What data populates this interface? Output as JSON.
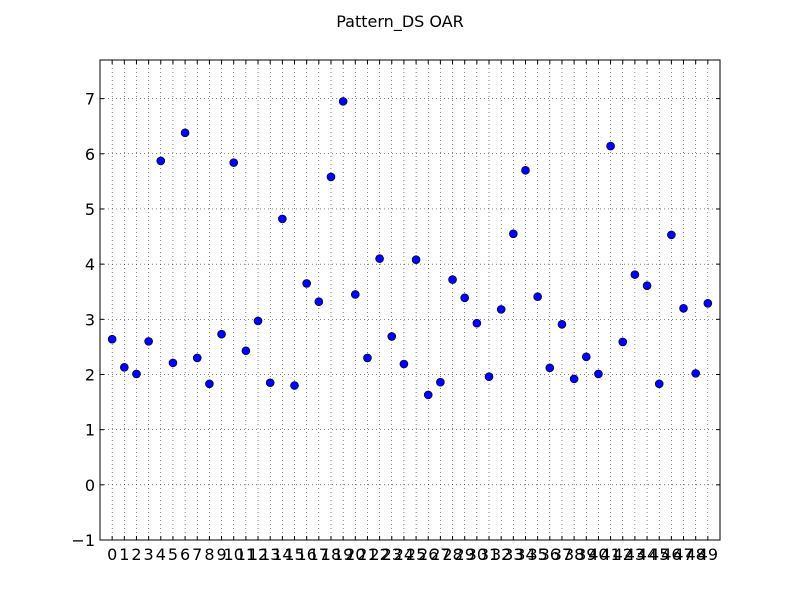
{
  "chart_data": {
    "type": "scatter",
    "title": "Pattern_DS OAR",
    "xlabel": "",
    "ylabel": "",
    "xlim": [
      -1,
      50
    ],
    "ylim": [
      -1,
      7.7
    ],
    "grid": true,
    "marker_color": "#0000ff",
    "x_ticks": [
      "0",
      "1",
      "2",
      "3",
      "4",
      "5",
      "6",
      "7",
      "8",
      "9",
      "10",
      "11",
      "12",
      "13",
      "14",
      "15",
      "16",
      "17",
      "18",
      "19",
      "20",
      "21",
      "22",
      "23",
      "24",
      "25",
      "26",
      "27",
      "28",
      "29",
      "30",
      "31",
      "32",
      "33",
      "34",
      "35",
      "36",
      "37",
      "38",
      "39",
      "40",
      "41",
      "42",
      "43",
      "44",
      "45",
      "46",
      "47",
      "48",
      "49"
    ],
    "y_ticks": [
      "−1",
      "0",
      "1",
      "2",
      "3",
      "4",
      "5",
      "6",
      "7"
    ],
    "x": [
      0,
      1,
      2,
      3,
      4,
      5,
      6,
      7,
      8,
      9,
      10,
      11,
      12,
      13,
      14,
      15,
      16,
      17,
      18,
      19,
      20,
      21,
      22,
      23,
      24,
      25,
      26,
      27,
      28,
      29,
      30,
      31,
      32,
      33,
      34,
      35,
      36,
      37,
      38,
      39,
      40,
      41,
      42,
      43,
      44,
      45,
      46,
      47,
      48,
      49
    ],
    "y": [
      2.64,
      2.13,
      2.01,
      2.6,
      5.87,
      2.21,
      6.38,
      2.3,
      1.83,
      2.73,
      5.84,
      2.43,
      2.97,
      1.85,
      4.82,
      1.8,
      3.65,
      3.32,
      5.58,
      6.95,
      3.45,
      2.3,
      4.1,
      2.69,
      2.19,
      4.08,
      1.63,
      1.86,
      3.72,
      3.39,
      2.93,
      1.96,
      3.18,
      4.55,
      5.7,
      3.41,
      2.12,
      2.91,
      1.92,
      2.32,
      2.01,
      6.14,
      2.59,
      3.81,
      3.61,
      1.83,
      4.53,
      3.2,
      2.02,
      3.29
    ]
  }
}
